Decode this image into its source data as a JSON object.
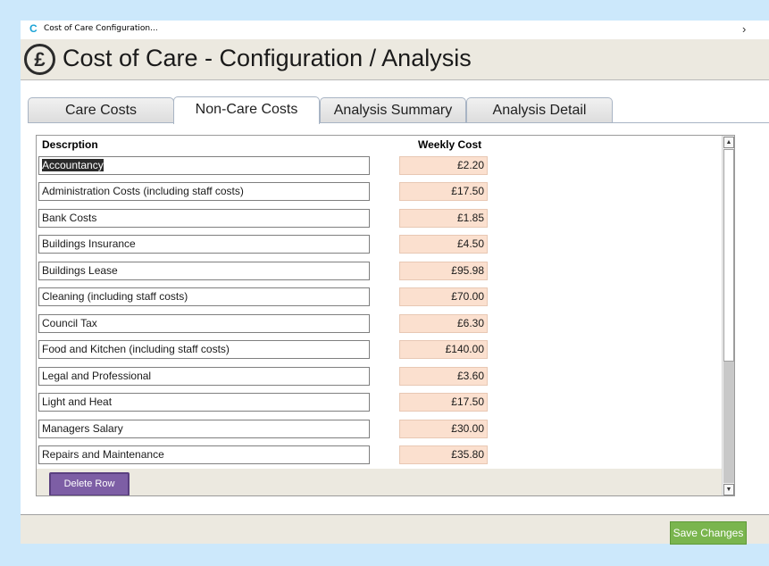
{
  "window": {
    "title": "Cost of Care Configuration..."
  },
  "header": {
    "currency_symbol": "£",
    "title": "Cost of Care - Configuration / Analysis"
  },
  "tabs": [
    {
      "label": "Care Costs"
    },
    {
      "label": "Non-Care Costs"
    },
    {
      "label": "Analysis Summary"
    },
    {
      "label": "Analysis Detail"
    }
  ],
  "active_tab": "Non-Care Costs",
  "table": {
    "headers": {
      "description": "Descrption",
      "weekly_cost": "Weekly Cost"
    },
    "rows": [
      {
        "description": "Accountancy",
        "cost": "£2.20"
      },
      {
        "description": "Administration Costs (including staff costs)",
        "cost": "£17.50"
      },
      {
        "description": "Bank Costs",
        "cost": "£1.85"
      },
      {
        "description": "Buildings Insurance",
        "cost": "£4.50"
      },
      {
        "description": "Buildings Lease",
        "cost": "£95.98"
      },
      {
        "description": "Cleaning (including staff costs)",
        "cost": "£70.00"
      },
      {
        "description": "Council Tax",
        "cost": "£6.30"
      },
      {
        "description": "Food and Kitchen (including staff costs)",
        "cost": "£140.00"
      },
      {
        "description": "Legal and Professional",
        "cost": "£3.60"
      },
      {
        "description": "Light and Heat",
        "cost": "£17.50"
      },
      {
        "description": "Managers Salary",
        "cost": "£30.00"
      },
      {
        "description": "Repairs and Maintenance",
        "cost": "£35.80"
      }
    ]
  },
  "buttons": {
    "delete_row": "Delete Row",
    "save_changes": "Save Changes"
  },
  "colors": {
    "cost_cell_bg": "#fbe0cf",
    "delete_button": "#7d5ea5",
    "save_button": "#7ab54e",
    "page_bg": "#cce8fb"
  }
}
